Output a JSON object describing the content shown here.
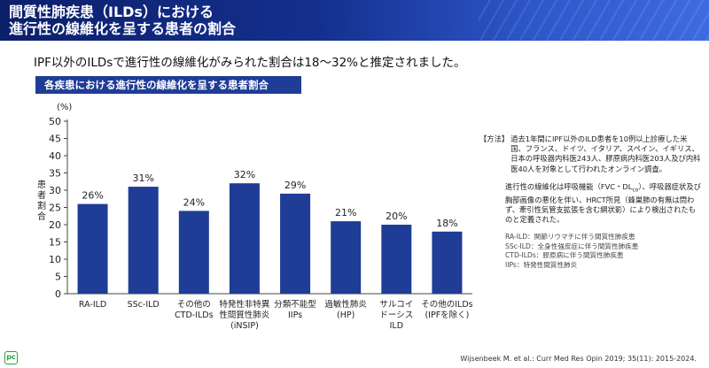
{
  "header": {
    "title": "間質性肺疾患（ILDs）における\n進行性の線維化を呈する患者の割合"
  },
  "subtitle": "IPF以外のILDsで進行性の線維化がみられた割合は18～32%と推定されました。",
  "section_header": "各疾患における進行性の線維化を呈する患者割合",
  "colors": {
    "bar": "#1f3c96",
    "header_dark": "#0c1f6b",
    "header_light": "#3f6be0",
    "logo": "#2aa23a"
  },
  "chart_data": {
    "type": "bar",
    "title": "各疾患における進行性の線維化を呈する患者割合",
    "unit_label": "(%)",
    "ylabel": "患者割合",
    "xlabel": "",
    "ylim": [
      0,
      50
    ],
    "yticks": [
      0,
      5,
      10,
      15,
      20,
      25,
      30,
      35,
      40,
      45,
      50
    ],
    "grid": false,
    "categories": [
      [
        "RA-ILD"
      ],
      [
        "SSc-ILD"
      ],
      [
        "その他の",
        "CTD-ILDs"
      ],
      [
        "特発性非特異",
        "性間質性肺炎",
        "(iNSIP)"
      ],
      [
        "分類不能型",
        "IIPs"
      ],
      [
        "過敏性肺炎",
        "(HP)"
      ],
      [
        "サルコイ",
        "ドーシス",
        "ILD"
      ],
      [
        "その他のILDs",
        "(IPFを除く)"
      ]
    ],
    "values": [
      26,
      31,
      24,
      32,
      29,
      21,
      20,
      18
    ],
    "data_labels": [
      "26%",
      "31%",
      "24%",
      "32%",
      "29%",
      "21%",
      "20%",
      "18%"
    ]
  },
  "notes": {
    "method_tag": "【方法】",
    "method_text": "過去1年間にIPF以外のILD患者を10例以上診療した米国、フランス、ドイツ、イタリア、スペイン、イギリス、日本の呼吸器内科医243人、膠原病内科医203人及び内科医40人を対象として行われたオンライン調査。",
    "definition_pre": "進行性の線維化は呼吸機能（FVC・DL",
    "definition_sub": "co",
    "definition_post": "）、呼吸器症状及び胸部画像の悪化を伴い、HRCT所見（蜂巣肺の有無は問わず、牽引性気管支拡張を含む網状影）により検出されたものと定義された。",
    "abbreviations": [
      "RA-ILD：関節リウマチに伴う間質性肺疾患",
      "SSc-ILD：全身性強皮症に伴う間質性肺疾患",
      "CTD-ILDs：膠原病に伴う間質性肺疾患",
      "IIPs：特発性間質性肺炎"
    ]
  },
  "citation": "Wijsenbeek M. et al.: Curr Med Res Opin 2019; 35(11): 2015-2024.",
  "logo_text": "pc"
}
